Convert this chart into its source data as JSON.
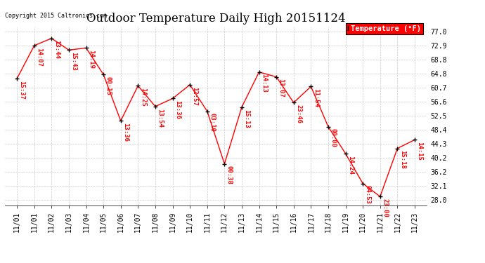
{
  "title": "Outdoor Temperature Daily High 20151124",
  "copyright": "Copyright 2015 Caltronics.com",
  "legend_label": "Temperature (°F)",
  "x_tick_labels": [
    "11/01",
    "11/01",
    "11/02",
    "11/03",
    "11/04",
    "11/05",
    "11/06",
    "11/07",
    "11/08",
    "11/09",
    "11/10",
    "11/11",
    "11/12",
    "11/13",
    "11/14",
    "11/15",
    "11/16",
    "11/17",
    "11/18",
    "11/19",
    "11/20",
    "11/21",
    "11/22",
    "11/23"
  ],
  "y_values": [
    63.3,
    72.9,
    75.0,
    71.6,
    72.2,
    64.5,
    51.0,
    61.2,
    55.2,
    57.5,
    61.5,
    53.8,
    38.5,
    55.0,
    65.2,
    63.8,
    56.3,
    61.0,
    49.3,
    41.5,
    32.8,
    29.0,
    43.0,
    45.5
  ],
  "point_labels": [
    "15:37",
    "14:07",
    "13:44",
    "15:43",
    "14:19",
    "00:15",
    "13:36",
    "14:25",
    "13:54",
    "13:36",
    "12:57",
    "03:10",
    "00:38",
    "15:13",
    "14:13",
    "13:07",
    "23:46",
    "11:54",
    "00:00",
    "14:24",
    "04:53",
    "23:00",
    "15:18",
    "14:15"
  ],
  "y_ticks": [
    28.0,
    32.1,
    36.2,
    40.2,
    44.3,
    48.4,
    52.5,
    56.6,
    60.7,
    64.8,
    68.8,
    72.9,
    77.0
  ],
  "ylim": [
    26.5,
    78.5
  ],
  "line_color": "#FF0000",
  "label_color": "#FF0000",
  "bg_color": "#FFFFFF",
  "grid_color": "#C8C8C8",
  "legend_bg": "#FF0000",
  "legend_fg": "#FFFFFF",
  "title_fontsize": 12,
  "tick_fontsize": 7,
  "label_fontsize": 6.5
}
